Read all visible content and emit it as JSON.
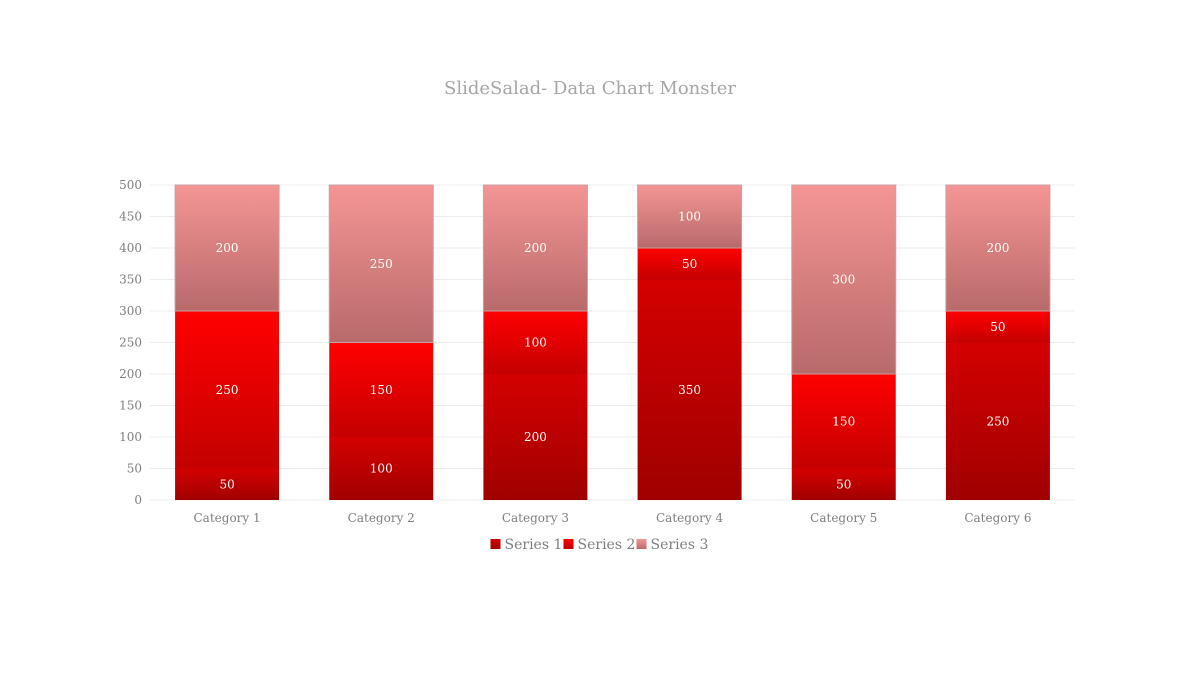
{
  "chart_data": {
    "type": "bar",
    "stacked": true,
    "title": "SlideSalad- Data Chart Monster",
    "xlabel": "",
    "ylabel": "",
    "categories": [
      "Category 1",
      "Category 2",
      "Category 3",
      "Category 4",
      "Category 5",
      "Category 6"
    ],
    "series": [
      {
        "name": "Series 1",
        "values": [
          50,
          100,
          200,
          350,
          50,
          250
        ],
        "color": "#c00000"
      },
      {
        "name": "Series 2",
        "values": [
          250,
          150,
          100,
          50,
          150,
          50
        ],
        "color": "#ff0000"
      },
      {
        "name": "Series 3",
        "values": [
          200,
          250,
          200,
          100,
          300,
          200
        ],
        "color": "#f08080"
      }
    ],
    "ylim": [
      0,
      500
    ],
    "yticks": [
      0,
      50,
      100,
      150,
      200,
      250,
      300,
      350,
      400,
      450,
      500
    ],
    "grid": true,
    "legend": "bottom"
  }
}
